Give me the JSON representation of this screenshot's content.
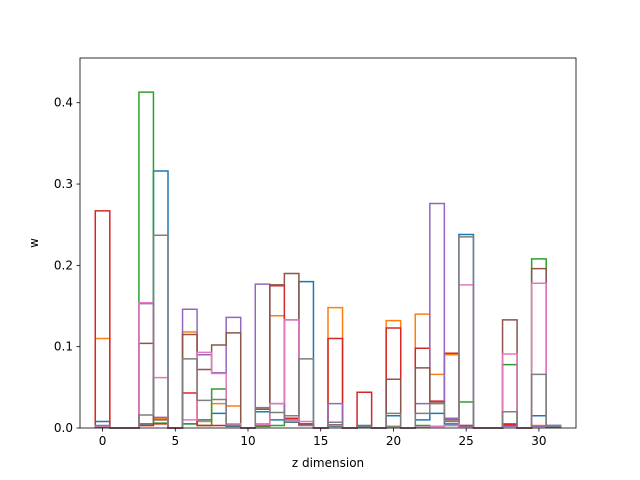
{
  "chart_data": {
    "type": "bar",
    "style": "step-outline histogram",
    "xlabel": "z dimension",
    "ylabel": "w",
    "xlim": [
      -1.55,
      32.55
    ],
    "ylim": [
      0,
      0.455
    ],
    "xticks": [
      0,
      5,
      10,
      15,
      20,
      25,
      30
    ],
    "yticks": [
      0.0,
      0.1,
      0.2,
      0.3,
      0.4
    ],
    "ytick_labels": [
      "0.0",
      "0.1",
      "0.2",
      "0.3",
      "0.4"
    ],
    "grid": false,
    "x": [
      0,
      1,
      2,
      3,
      4,
      5,
      6,
      7,
      8,
      9,
      10,
      11,
      12,
      13,
      14,
      15,
      16,
      17,
      18,
      19,
      20,
      21,
      22,
      23,
      24,
      25,
      26,
      27,
      28,
      29,
      30,
      31
    ],
    "series": [
      {
        "color": "#1f77b4",
        "values": [
          0.008,
          0,
          0,
          0.005,
          0.316,
          0,
          0.005,
          0.01,
          0.018,
          0.002,
          0,
          0.02,
          0.01,
          0.007,
          0.18,
          0,
          0.002,
          0,
          0.003,
          0,
          0.015,
          0,
          0.01,
          0.018,
          0.005,
          0.238,
          0,
          0,
          0.005,
          0,
          0.015,
          0.003
        ]
      },
      {
        "color": "#ff7f0e",
        "values": [
          0.11,
          0,
          0,
          0.003,
          0.012,
          0,
          0.118,
          0.008,
          0.03,
          0.027,
          0,
          0.005,
          0.138,
          0.008,
          0.005,
          0,
          0.148,
          0,
          0.002,
          0,
          0.132,
          0,
          0.14,
          0.066,
          0.09,
          0.003,
          0,
          0,
          0.003,
          0,
          0.003,
          0.002
        ]
      },
      {
        "color": "#2ca02c",
        "values": [
          0.001,
          0,
          0,
          0.413,
          0.006,
          0,
          0.005,
          0.003,
          0.048,
          0.003,
          0,
          0.002,
          0.003,
          0.133,
          0.005,
          0,
          0.003,
          0,
          0.002,
          0,
          0.002,
          0,
          0.003,
          0.002,
          0.003,
          0.032,
          0,
          0,
          0.078,
          0,
          0.208,
          0.001
        ]
      },
      {
        "color": "#d62728",
        "values": [
          0.267,
          0,
          0,
          0.003,
          0.005,
          0,
          0.043,
          0.003,
          0.003,
          0.003,
          0,
          0.003,
          0.175,
          0.012,
          0.004,
          0,
          0.11,
          0,
          0.044,
          0,
          0.123,
          0,
          0.098,
          0.033,
          0.092,
          0.002,
          0,
          0,
          0.004,
          0,
          0.002,
          0.002
        ]
      },
      {
        "color": "#9467bd",
        "values": [
          0.002,
          0,
          0,
          0.153,
          0.013,
          0,
          0.146,
          0.09,
          0.068,
          0.136,
          0,
          0.177,
          0.03,
          0.01,
          0.003,
          0,
          0.03,
          0,
          0.001,
          0,
          0.06,
          0,
          0.03,
          0.276,
          0.012,
          0.002,
          0,
          0,
          0.002,
          0,
          0.002,
          0.003
        ]
      },
      {
        "color": "#8c564b",
        "values": [
          0.002,
          0,
          0,
          0.104,
          0.01,
          0,
          0.115,
          0.072,
          0.102,
          0.117,
          0,
          0.023,
          0.176,
          0.19,
          0.005,
          0,
          0.004,
          0,
          0.002,
          0,
          0.06,
          0,
          0.074,
          0.032,
          0.01,
          0.003,
          0,
          0,
          0.133,
          0,
          0.196,
          0.002
        ]
      },
      {
        "color": "#e377c2",
        "values": [
          0.002,
          0,
          0,
          0.154,
          0.062,
          0,
          0.01,
          0.093,
          0.067,
          0.005,
          0,
          0.004,
          0.03,
          0.133,
          0.008,
          0,
          0.003,
          0,
          0.002,
          0,
          0.001,
          0,
          0.001,
          0.002,
          0.003,
          0.176,
          0,
          0,
          0.091,
          0,
          0.178,
          0.002
        ]
      },
      {
        "color": "#7f7f7f",
        "values": [
          0.003,
          0,
          0,
          0.016,
          0.237,
          0,
          0.085,
          0.034,
          0.035,
          0.003,
          0,
          0.025,
          0.019,
          0.015,
          0.085,
          0,
          0.007,
          0,
          0.002,
          0,
          0.018,
          0,
          0.018,
          0.03,
          0.008,
          0.235,
          0,
          0,
          0.02,
          0,
          0.066,
          0.002
        ]
      }
    ]
  }
}
